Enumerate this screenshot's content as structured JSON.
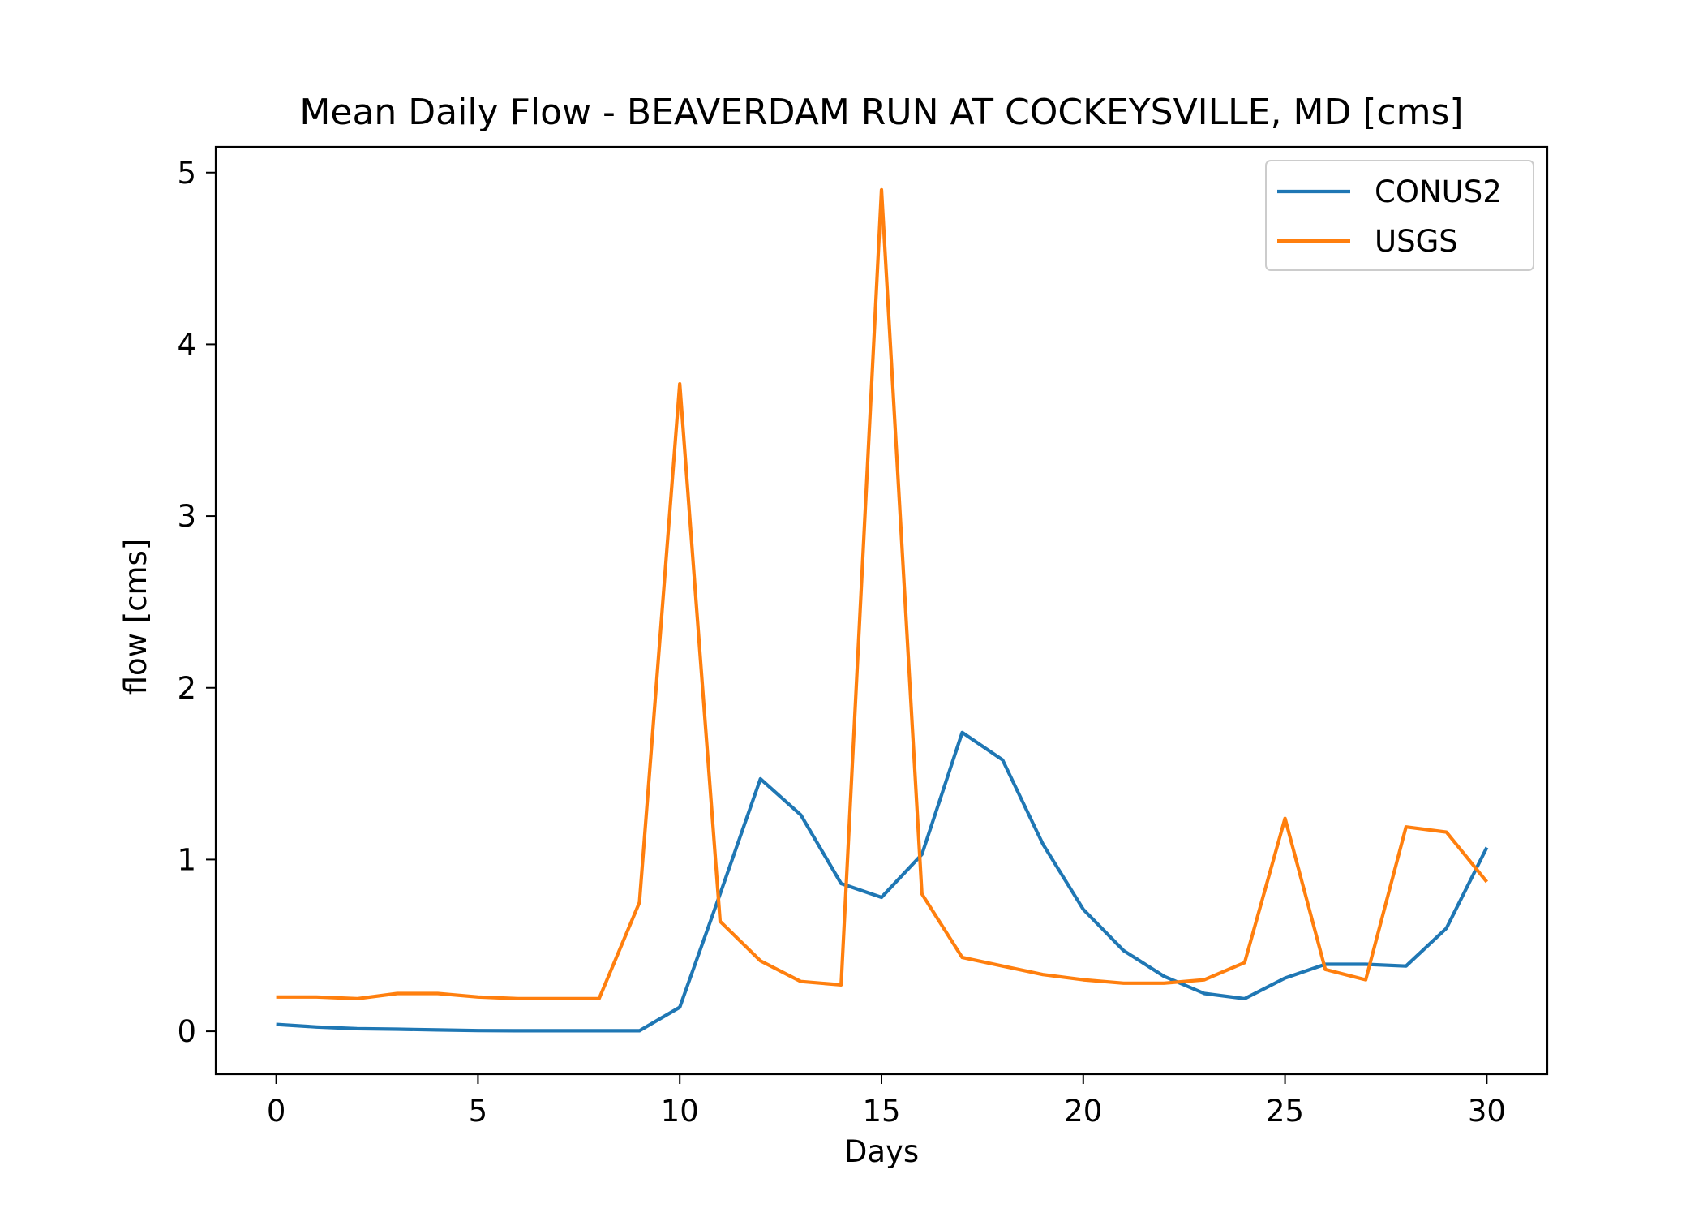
{
  "chart_data": {
    "type": "line",
    "title": "Mean Daily Flow - BEAVERDAM RUN AT COCKEYSVILLE, MD [cms]",
    "xlabel": "Days",
    "ylabel": "flow [cms]",
    "xlim": [
      -1.5,
      31.5
    ],
    "ylim": [
      -0.25,
      5.15
    ],
    "xticks": [
      0,
      5,
      10,
      15,
      20,
      25,
      30
    ],
    "yticks": [
      0,
      1,
      2,
      3,
      4,
      5
    ],
    "grid": false,
    "legend_position": "top-right",
    "x": [
      0,
      1,
      2,
      3,
      4,
      5,
      6,
      7,
      8,
      9,
      10,
      11,
      12,
      13,
      14,
      15,
      16,
      17,
      18,
      19,
      20,
      21,
      22,
      23,
      24,
      25,
      26,
      27,
      28,
      29,
      30
    ],
    "series": [
      {
        "name": "CONUS2",
        "color": "#1f77b4",
        "values": [
          0.04,
          0.025,
          0.015,
          0.012,
          0.008,
          0.004,
          0.003,
          0.003,
          0.003,
          0.003,
          0.14,
          0.8,
          1.47,
          1.26,
          0.86,
          0.78,
          1.03,
          1.74,
          1.58,
          1.09,
          0.71,
          0.47,
          0.32,
          0.22,
          0.19,
          0.31,
          0.39,
          0.39,
          0.38,
          0.6,
          1.07
        ]
      },
      {
        "name": "USGS",
        "color": "#ff7f0e",
        "values": [
          0.2,
          0.2,
          0.19,
          0.22,
          0.22,
          0.2,
          0.19,
          0.19,
          0.19,
          0.75,
          3.77,
          0.64,
          0.41,
          0.29,
          0.27,
          4.9,
          0.8,
          0.43,
          0.38,
          0.33,
          0.3,
          0.28,
          0.28,
          0.3,
          0.4,
          1.24,
          0.36,
          0.3,
          1.19,
          1.16,
          0.87
        ]
      }
    ]
  }
}
